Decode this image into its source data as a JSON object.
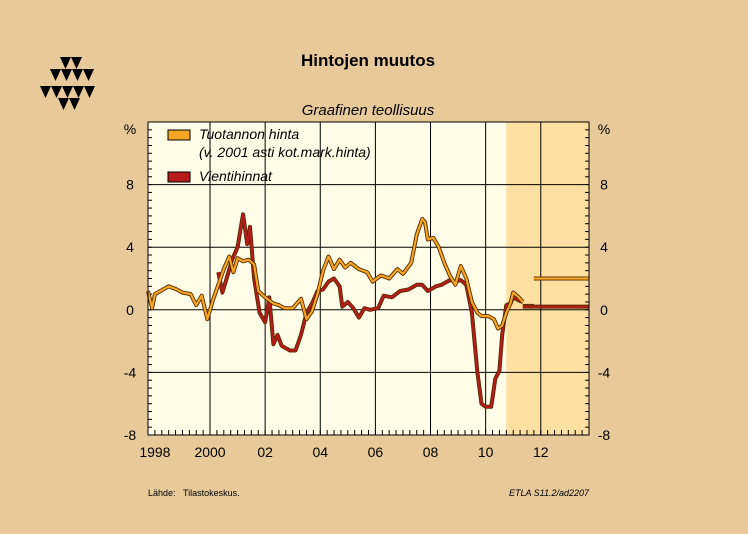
{
  "header": {
    "title": "Hintojen muutos"
  },
  "chart_data": {
    "type": "line",
    "title": "Hintojen muutos",
    "subtitle": "Graafinen teollisuus",
    "ylabel_left": "%",
    "ylabel_right": "%",
    "ylim": [
      -8,
      12
    ],
    "yticks": [
      8,
      4,
      0,
      -4,
      -8
    ],
    "xlim": [
      1997.75,
      2013.75
    ],
    "xticks": [
      {
        "value": 1998,
        "label": "1998"
      },
      {
        "value": 2000,
        "label": "2000"
      },
      {
        "value": 2002,
        "label": "02"
      },
      {
        "value": 2004,
        "label": "04"
      },
      {
        "value": 2006,
        "label": "06"
      },
      {
        "value": 2008,
        "label": "08"
      },
      {
        "value": 2010,
        "label": "10"
      },
      {
        "value": 2012,
        "label": "12"
      }
    ],
    "forecast_start": 2010.75,
    "grid": true,
    "legend_position": "top-left",
    "series": [
      {
        "name": "Tuotannon hinta",
        "name_line2": "(v. 2001 asti kot.mark.hinta)",
        "color": "#f5a623",
        "points": [
          [
            1997.75,
            1.2
          ],
          [
            1997.9,
            0.1
          ],
          [
            1998.0,
            1.0
          ],
          [
            1998.2,
            1.2
          ],
          [
            1998.5,
            1.5
          ],
          [
            1998.8,
            1.3
          ],
          [
            1999.0,
            1.1
          ],
          [
            1999.3,
            1.0
          ],
          [
            1999.5,
            0.3
          ],
          [
            1999.7,
            0.9
          ],
          [
            1999.9,
            -0.6
          ],
          [
            2000.1,
            0.6
          ],
          [
            2000.3,
            1.6
          ],
          [
            2000.5,
            2.6
          ],
          [
            2000.7,
            3.4
          ],
          [
            2000.85,
            2.4
          ],
          [
            2001.0,
            3.3
          ],
          [
            2001.2,
            3.1
          ],
          [
            2001.4,
            3.2
          ],
          [
            2001.6,
            2.9
          ],
          [
            2001.75,
            1.2
          ],
          [
            2002.0,
            0.8
          ],
          [
            2002.3,
            0.4
          ],
          [
            2002.5,
            0.3
          ],
          [
            2002.7,
            0.1
          ],
          [
            2003.0,
            0.1
          ],
          [
            2003.3,
            0.7
          ],
          [
            2003.5,
            -0.6
          ],
          [
            2003.7,
            -0.1
          ],
          [
            2003.9,
            1.0
          ],
          [
            2004.1,
            2.5
          ],
          [
            2004.3,
            3.4
          ],
          [
            2004.5,
            2.6
          ],
          [
            2004.7,
            3.2
          ],
          [
            2004.9,
            2.7
          ],
          [
            2005.1,
            3.0
          ],
          [
            2005.4,
            2.6
          ],
          [
            2005.7,
            2.4
          ],
          [
            2005.9,
            1.8
          ],
          [
            2006.2,
            2.2
          ],
          [
            2006.5,
            2.0
          ],
          [
            2006.8,
            2.6
          ],
          [
            2007.0,
            2.3
          ],
          [
            2007.3,
            3.0
          ],
          [
            2007.5,
            4.8
          ],
          [
            2007.7,
            5.8
          ],
          [
            2007.8,
            5.6
          ],
          [
            2007.9,
            4.5
          ],
          [
            2008.1,
            4.6
          ],
          [
            2008.3,
            4.0
          ],
          [
            2008.5,
            3.0
          ],
          [
            2008.7,
            2.2
          ],
          [
            2008.9,
            1.6
          ],
          [
            2009.1,
            2.8
          ],
          [
            2009.3,
            2.0
          ],
          [
            2009.5,
            0.5
          ],
          [
            2009.7,
            -0.2
          ],
          [
            2009.85,
            -0.4
          ],
          [
            2010.1,
            -0.4
          ],
          [
            2010.3,
            -0.6
          ],
          [
            2010.45,
            -1.2
          ],
          [
            2010.6,
            -1.0
          ],
          [
            2010.75,
            -0.2
          ],
          [
            2010.9,
            0.4
          ],
          [
            2011.0,
            1.1
          ],
          [
            2011.2,
            0.8
          ],
          [
            2011.35,
            0.5
          ]
        ]
      },
      {
        "name": "Vientihinnat",
        "color": "#b71c1c",
        "points": [
          [
            2000.3,
            2.4
          ],
          [
            2000.45,
            1.1
          ],
          [
            2000.6,
            2.0
          ],
          [
            2000.8,
            3.2
          ],
          [
            2001.0,
            4.0
          ],
          [
            2001.15,
            5.6
          ],
          [
            2001.2,
            6.1
          ],
          [
            2001.35,
            4.2
          ],
          [
            2001.45,
            5.3
          ],
          [
            2001.6,
            2.0
          ],
          [
            2001.8,
            -0.2
          ],
          [
            2002.0,
            -0.8
          ],
          [
            2002.15,
            0.8
          ],
          [
            2002.3,
            -2.2
          ],
          [
            2002.45,
            -1.6
          ],
          [
            2002.6,
            -2.3
          ],
          [
            2002.9,
            -2.6
          ],
          [
            2003.1,
            -2.6
          ],
          [
            2003.3,
            -1.6
          ],
          [
            2003.5,
            -0.2
          ],
          [
            2003.7,
            0.4
          ],
          [
            2003.9,
            1.2
          ],
          [
            2004.1,
            1.3
          ],
          [
            2004.3,
            1.8
          ],
          [
            2004.5,
            2.0
          ],
          [
            2004.7,
            1.5
          ],
          [
            2004.8,
            0.2
          ],
          [
            2005.0,
            0.5
          ],
          [
            2005.2,
            0.1
          ],
          [
            2005.4,
            -0.5
          ],
          [
            2005.6,
            0.1
          ],
          [
            2005.8,
            0.0
          ],
          [
            2006.1,
            0.1
          ],
          [
            2006.3,
            0.9
          ],
          [
            2006.6,
            0.8
          ],
          [
            2006.9,
            1.2
          ],
          [
            2007.2,
            1.3
          ],
          [
            2007.5,
            1.6
          ],
          [
            2007.7,
            1.6
          ],
          [
            2007.9,
            1.2
          ],
          [
            2008.2,
            1.5
          ],
          [
            2008.4,
            1.6
          ],
          [
            2008.7,
            1.9
          ],
          [
            2008.9,
            1.8
          ],
          [
            2009.1,
            1.9
          ],
          [
            2009.3,
            1.6
          ],
          [
            2009.5,
            -0.2
          ],
          [
            2009.7,
            -4.0
          ],
          [
            2009.85,
            -6.0
          ],
          [
            2010.0,
            -6.2
          ],
          [
            2010.2,
            -6.2
          ],
          [
            2010.35,
            -4.4
          ],
          [
            2010.5,
            -3.9
          ],
          [
            2010.6,
            -1.6
          ],
          [
            2010.75,
            0.3
          ],
          [
            2010.9,
            0.4
          ],
          [
            2011.0,
            0.8
          ],
          [
            2011.2,
            0.6
          ],
          [
            2011.35,
            0.5
          ]
        ]
      }
    ],
    "forecast_lines": [
      {
        "series": 0,
        "x": [
          2011.35,
          2011.75
        ],
        "y": 0.25
      },
      {
        "series": 0,
        "x": [
          2011.75,
          2013.75
        ],
        "y": 2.0
      },
      {
        "series": 1,
        "x": [
          2011.35,
          2013.75
        ],
        "y": 0.2
      }
    ]
  },
  "footer": {
    "source_label": "Lähde:",
    "source_value": "Tilastokeskus.",
    "code": "ETLA S11.2/ad2207"
  }
}
